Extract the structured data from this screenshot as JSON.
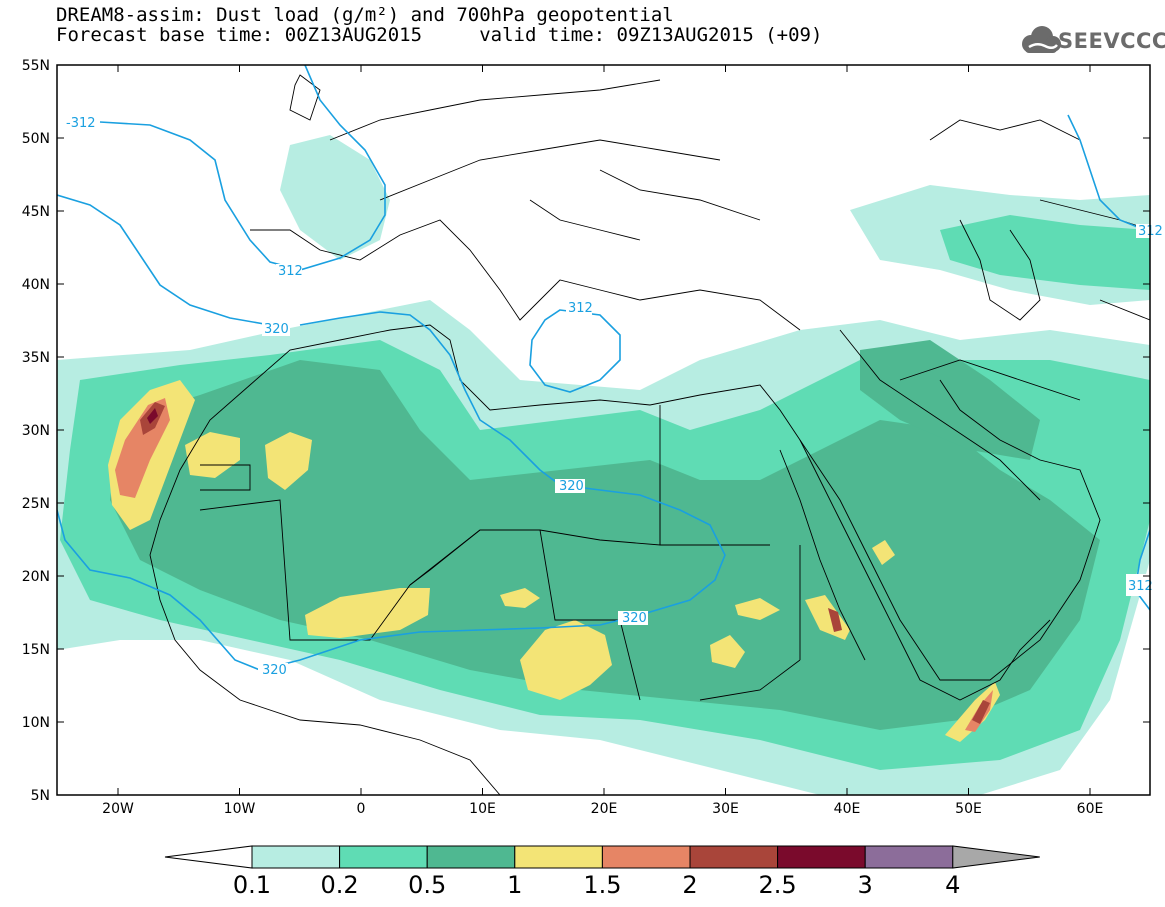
{
  "header": {
    "title_line1": "DREAM8-assim: Dust load (g/m²) and 700hPa geopotential",
    "title_line2": "Forecast base time: 00Z13AUG2015     valid time: 09Z13AUG2015 (+09)"
  },
  "logo": {
    "text": "SEEVCCC",
    "icon": "cloud-icon"
  },
  "map": {
    "lat_labels": [
      "55N",
      "50N",
      "45N",
      "40N",
      "35N",
      "30N",
      "25N",
      "20N",
      "15N",
      "10N",
      "5N"
    ],
    "lon_labels": [
      "20W",
      "10W",
      "0",
      "10E",
      "20E",
      "30E",
      "40E",
      "50E",
      "60E"
    ],
    "contour_labels": [
      "-312",
      "312",
      "312",
      "320",
      "320",
      "320",
      "320",
      "312",
      "312"
    ]
  },
  "colorbar": {
    "labels": [
      "0.1",
      "0.2",
      "0.5",
      "1",
      "1.5",
      "2",
      "2.5",
      "3",
      "4"
    ],
    "colors": [
      "#ffffff",
      "#b7ede2",
      "#5fdcb4",
      "#4fb891",
      "#f3e476",
      "#e68565",
      "#a9453a",
      "#7a0a2c",
      "#8c6d9a",
      "#a8a8a8"
    ]
  },
  "colors": {
    "contour": "#1aa0e0",
    "frame": "#000000"
  }
}
